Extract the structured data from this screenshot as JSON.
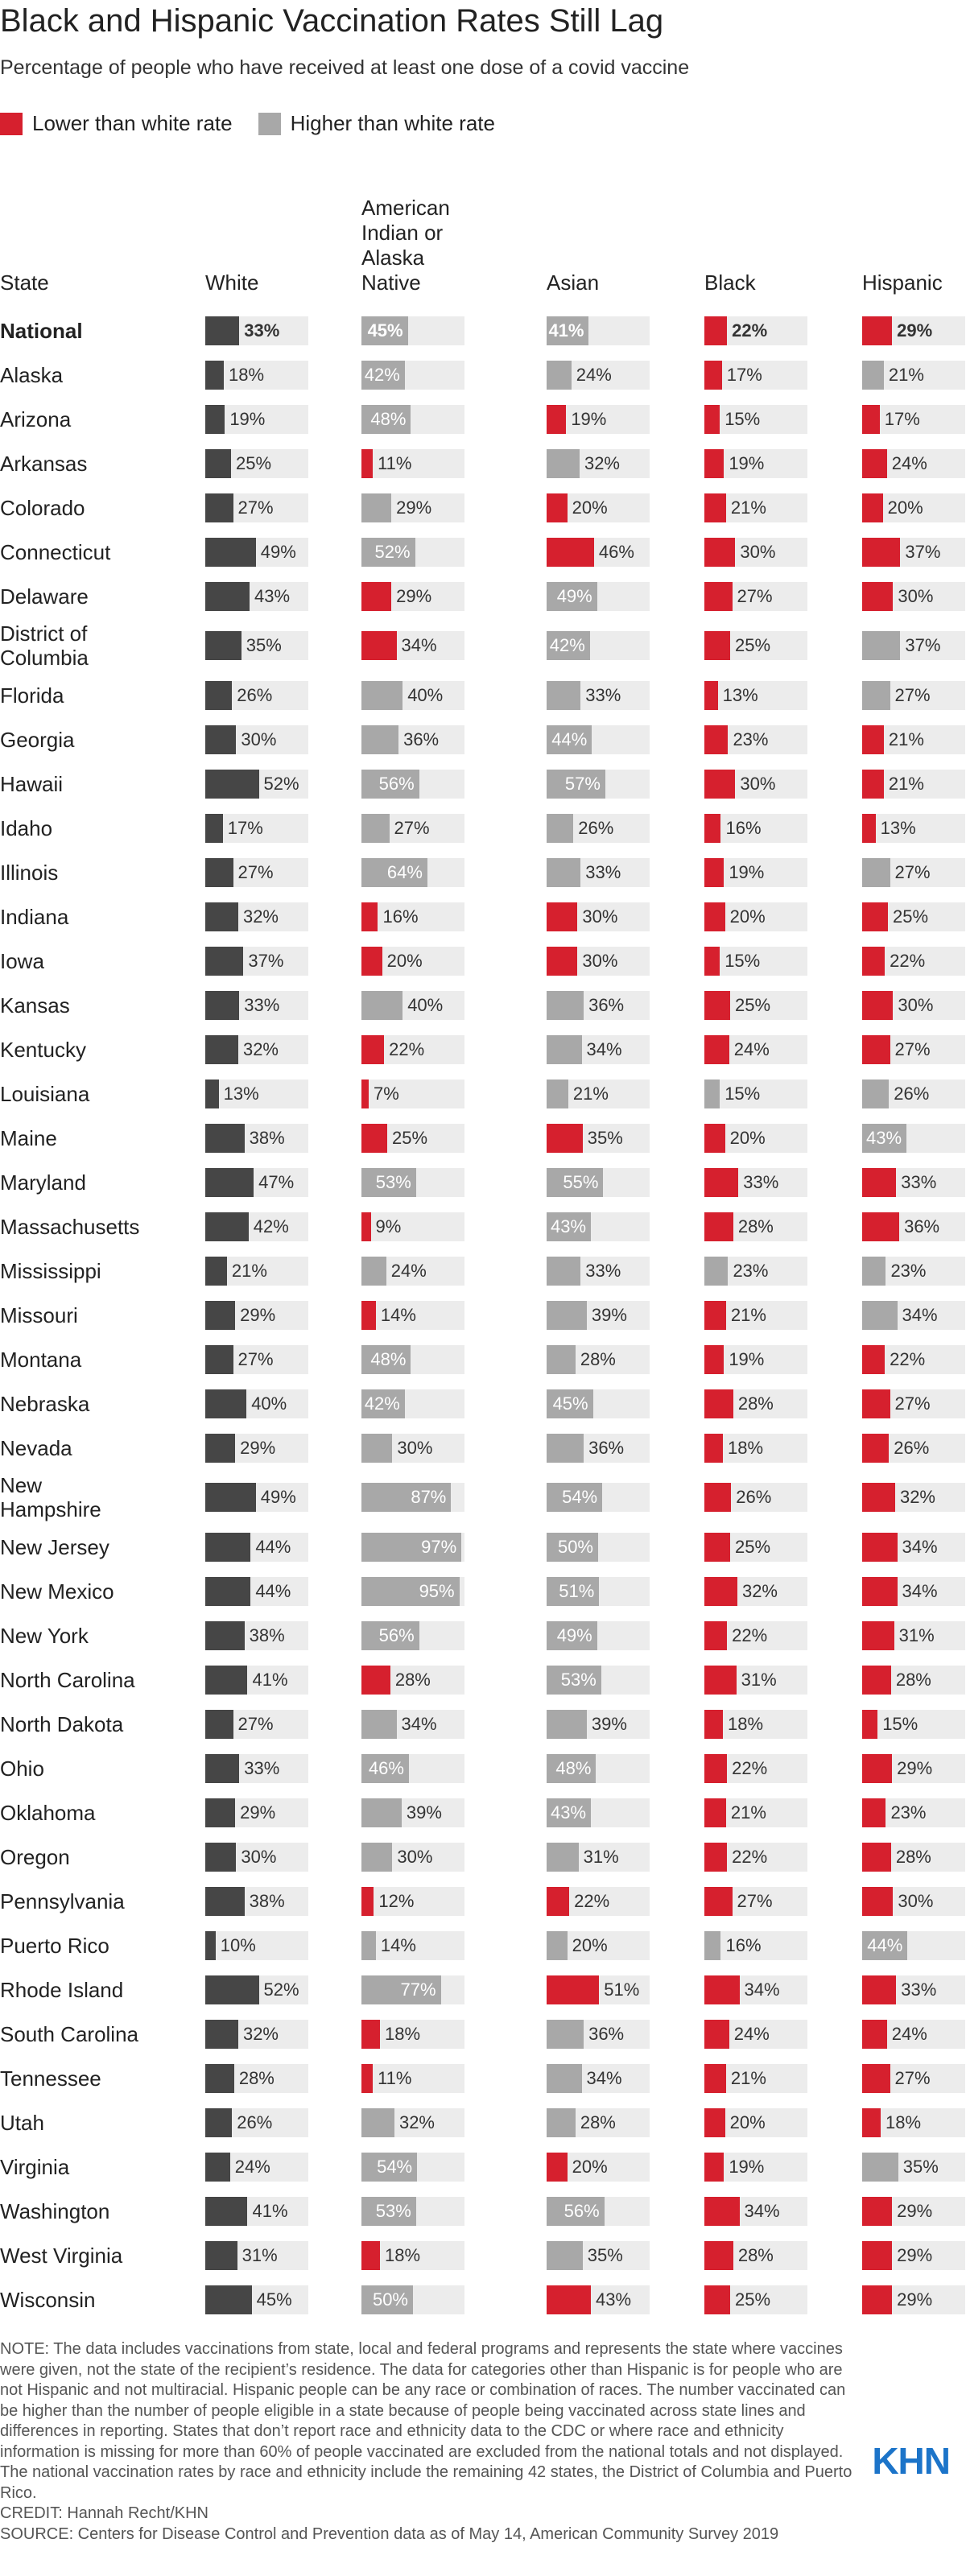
{
  "chart_data": {
    "type": "bar",
    "title": "Black and Hispanic Vaccination Rates Still Lag",
    "subtitle": "Percentage of people who have received at least one dose of a covid vaccine",
    "legend": [
      {
        "label": "Lower than white rate",
        "color": "#d6202e"
      },
      {
        "label": "Higher than white rate",
        "color": "#a8a8a8"
      }
    ],
    "category_label": "State",
    "xlim": [
      0,
      100
    ],
    "categories": [
      "National",
      "Alaska",
      "Arizona",
      "Arkansas",
      "Colorado",
      "Connecticut",
      "Delaware",
      "District of Columbia",
      "Florida",
      "Georgia",
      "Hawaii",
      "Idaho",
      "Illinois",
      "Indiana",
      "Iowa",
      "Kansas",
      "Kentucky",
      "Louisiana",
      "Maine",
      "Maryland",
      "Massachusetts",
      "Mississippi",
      "Missouri",
      "Montana",
      "Nebraska",
      "Nevada",
      "New Hampshire",
      "New Jersey",
      "New Mexico",
      "New York",
      "North Carolina",
      "North Dakota",
      "Ohio",
      "Oklahoma",
      "Oregon",
      "Pennsylvania",
      "Puerto Rico",
      "Rhode Island",
      "South Carolina",
      "Tennessee",
      "Utah",
      "Virginia",
      "Washington",
      "West Virginia",
      "Wisconsin"
    ],
    "series": [
      {
        "name": "White",
        "color": "#464646",
        "values": [
          33,
          18,
          19,
          25,
          27,
          49,
          43,
          35,
          26,
          30,
          52,
          17,
          27,
          32,
          37,
          33,
          32,
          13,
          38,
          47,
          42,
          21,
          29,
          27,
          40,
          29,
          49,
          44,
          44,
          38,
          41,
          27,
          33,
          29,
          30,
          38,
          10,
          52,
          32,
          28,
          26,
          24,
          41,
          31,
          45
        ],
        "value_labels": [
          "33%",
          "18%",
          "19%",
          "25%",
          "27%",
          "49%",
          "43%",
          "35%",
          "26%",
          "30%",
          "52%",
          "17%",
          "27%",
          "32%",
          "37%",
          "33%",
          "32%",
          "13%",
          "38%",
          "47%",
          "42%",
          "21%",
          "29%",
          "27%",
          "40%",
          "29%",
          "49%",
          "44%",
          "44%",
          "38%",
          "41%",
          "27%",
          "33%",
          "29%",
          "30%",
          "38%",
          "10%",
          "52%",
          "32%",
          "28%",
          "26%",
          "24%",
          "41%",
          "31%",
          "45%"
        ]
      },
      {
        "name": "American Indian or Alaska Native",
        "values": [
          45,
          42,
          48,
          11,
          29,
          52,
          29,
          34,
          40,
          36,
          56,
          27,
          64,
          16,
          20,
          40,
          22,
          7,
          25,
          53,
          9,
          24,
          14,
          48,
          42,
          30,
          87,
          97,
          95,
          56,
          28,
          34,
          46,
          39,
          30,
          12,
          14,
          77,
          18,
          11,
          32,
          54,
          53,
          18,
          50
        ],
        "value_labels": [
          "45%",
          "42%",
          "48%",
          "11%",
          "29%",
          "52%",
          "29%",
          "34%",
          "40%",
          "36%",
          "56%",
          "27%",
          "64%",
          "16%",
          "20%",
          "40%",
          "22%",
          "7%",
          "25%",
          "53%",
          "9%",
          "24%",
          "14%",
          "48%",
          "42%",
          "30%",
          "87%",
          "97%",
          "95%",
          "56%",
          "28%",
          "34%",
          "46%",
          "39%",
          "30%",
          "12%",
          "14%",
          "77%",
          "18%",
          "11%",
          "32%",
          "54%",
          "53%",
          "18%",
          "50%"
        ],
        "colors": [
          "#a8a8a8",
          "#a8a8a8",
          "#a8a8a8",
          "#d6202e",
          "#a8a8a8",
          "#a8a8a8",
          "#d6202e",
          "#d6202e",
          "#a8a8a8",
          "#a8a8a8",
          "#a8a8a8",
          "#a8a8a8",
          "#a8a8a8",
          "#d6202e",
          "#d6202e",
          "#a8a8a8",
          "#d6202e",
          "#d6202e",
          "#d6202e",
          "#a8a8a8",
          "#d6202e",
          "#a8a8a8",
          "#d6202e",
          "#a8a8a8",
          "#a8a8a8",
          "#a8a8a8",
          "#a8a8a8",
          "#a8a8a8",
          "#a8a8a8",
          "#a8a8a8",
          "#d6202e",
          "#a8a8a8",
          "#a8a8a8",
          "#a8a8a8",
          "#a8a8a8",
          "#d6202e",
          "#a8a8a8",
          "#a8a8a8",
          "#d6202e",
          "#d6202e",
          "#a8a8a8",
          "#a8a8a8",
          "#a8a8a8",
          "#d6202e",
          "#a8a8a8"
        ]
      },
      {
        "name": "Asian",
        "values": [
          41,
          24,
          19,
          32,
          20,
          46,
          49,
          42,
          33,
          44,
          57,
          26,
          33,
          30,
          30,
          36,
          34,
          21,
          35,
          55,
          43,
          33,
          39,
          28,
          45,
          36,
          54,
          50,
          51,
          49,
          53,
          39,
          48,
          43,
          31,
          22,
          20,
          51,
          36,
          34,
          28,
          20,
          56,
          35,
          43
        ],
        "value_labels": [
          "41%",
          "24%",
          "19%",
          "32%",
          "20%",
          "46%",
          "49%",
          "42%",
          "33%",
          "44%",
          "57%",
          "26%",
          "33%",
          "30%",
          "30%",
          "36%",
          "34%",
          "21%",
          "35%",
          "55%",
          "43%",
          "33%",
          "39%",
          "28%",
          "45%",
          "36%",
          "54%",
          "50%",
          "51%",
          "49%",
          "53%",
          "39%",
          "48%",
          "43%",
          "31%",
          "22%",
          "20%",
          "51%",
          "36%",
          "34%",
          "28%",
          "20%",
          "56%",
          "35%",
          "43%"
        ],
        "colors": [
          "#a8a8a8",
          "#a8a8a8",
          "#d6202e",
          "#a8a8a8",
          "#d6202e",
          "#d6202e",
          "#a8a8a8",
          "#a8a8a8",
          "#a8a8a8",
          "#a8a8a8",
          "#a8a8a8",
          "#a8a8a8",
          "#a8a8a8",
          "#d6202e",
          "#d6202e",
          "#a8a8a8",
          "#a8a8a8",
          "#a8a8a8",
          "#d6202e",
          "#a8a8a8",
          "#a8a8a8",
          "#a8a8a8",
          "#a8a8a8",
          "#a8a8a8",
          "#a8a8a8",
          "#a8a8a8",
          "#a8a8a8",
          "#a8a8a8",
          "#a8a8a8",
          "#a8a8a8",
          "#a8a8a8",
          "#a8a8a8",
          "#a8a8a8",
          "#a8a8a8",
          "#a8a8a8",
          "#d6202e",
          "#a8a8a8",
          "#d6202e",
          "#a8a8a8",
          "#a8a8a8",
          "#a8a8a8",
          "#d6202e",
          "#a8a8a8",
          "#a8a8a8",
          "#d6202e"
        ]
      },
      {
        "name": "Black",
        "values": [
          22,
          17,
          15,
          19,
          21,
          30,
          27,
          25,
          13,
          23,
          30,
          16,
          19,
          20,
          15,
          25,
          24,
          15,
          20,
          33,
          28,
          23,
          21,
          19,
          28,
          18,
          26,
          25,
          32,
          22,
          31,
          18,
          22,
          21,
          22,
          27,
          16,
          34,
          24,
          21,
          20,
          19,
          34,
          28,
          25
        ],
        "value_labels": [
          "22%",
          "17%",
          "15%",
          "19%",
          "21%",
          "30%",
          "27%",
          "25%",
          "13%",
          "23%",
          "30%",
          "16%",
          "19%",
          "20%",
          "15%",
          "25%",
          "24%",
          "15%",
          "20%",
          "33%",
          "28%",
          "23%",
          "21%",
          "19%",
          "28%",
          "18%",
          "26%",
          "25%",
          "32%",
          "22%",
          "31%",
          "18%",
          "22%",
          "21%",
          "22%",
          "27%",
          "16%",
          "34%",
          "24%",
          "21%",
          "20%",
          "19%",
          "34%",
          "28%",
          "25%"
        ],
        "colors": [
          "#d6202e",
          "#d6202e",
          "#d6202e",
          "#d6202e",
          "#d6202e",
          "#d6202e",
          "#d6202e",
          "#d6202e",
          "#d6202e",
          "#d6202e",
          "#d6202e",
          "#d6202e",
          "#d6202e",
          "#d6202e",
          "#d6202e",
          "#d6202e",
          "#d6202e",
          "#a8a8a8",
          "#d6202e",
          "#d6202e",
          "#d6202e",
          "#a8a8a8",
          "#d6202e",
          "#d6202e",
          "#d6202e",
          "#d6202e",
          "#d6202e",
          "#d6202e",
          "#d6202e",
          "#d6202e",
          "#d6202e",
          "#d6202e",
          "#d6202e",
          "#d6202e",
          "#d6202e",
          "#d6202e",
          "#a8a8a8",
          "#d6202e",
          "#d6202e",
          "#d6202e",
          "#d6202e",
          "#d6202e",
          "#d6202e",
          "#d6202e",
          "#d6202e"
        ]
      },
      {
        "name": "Hispanic",
        "values": [
          29,
          21,
          17,
          24,
          20,
          37,
          30,
          37,
          27,
          21,
          21,
          13,
          27,
          25,
          22,
          30,
          27,
          26,
          43,
          33,
          36,
          23,
          34,
          22,
          27,
          26,
          32,
          34,
          34,
          31,
          28,
          15,
          29,
          23,
          28,
          30,
          44,
          33,
          24,
          27,
          18,
          35,
          29,
          29,
          29
        ],
        "value_labels": [
          "29%",
          "21%",
          "17%",
          "24%",
          "20%",
          "37%",
          "30%",
          "37%",
          "27%",
          "21%",
          "21%",
          "13%",
          "27%",
          "25%",
          "22%",
          "30%",
          "27%",
          "26%",
          "43%",
          "33%",
          "36%",
          "23%",
          "34%",
          "22%",
          "27%",
          "26%",
          "32%",
          "34%",
          "34%",
          "31%",
          "28%",
          "15%",
          "29%",
          "23%",
          "28%",
          "30%",
          "44%",
          "33%",
          "24%",
          "27%",
          "18%",
          "35%",
          "29%",
          "29%",
          "29%"
        ],
        "colors": [
          "#d6202e",
          "#a8a8a8",
          "#d6202e",
          "#d6202e",
          "#d6202e",
          "#d6202e",
          "#d6202e",
          "#a8a8a8",
          "#a8a8a8",
          "#d6202e",
          "#d6202e",
          "#d6202e",
          "#a8a8a8",
          "#d6202e",
          "#d6202e",
          "#d6202e",
          "#d6202e",
          "#a8a8a8",
          "#a8a8a8",
          "#d6202e",
          "#d6202e",
          "#a8a8a8",
          "#a8a8a8",
          "#d6202e",
          "#d6202e",
          "#d6202e",
          "#d6202e",
          "#d6202e",
          "#d6202e",
          "#d6202e",
          "#d6202e",
          "#d6202e",
          "#d6202e",
          "#d6202e",
          "#d6202e",
          "#d6202e",
          "#a8a8a8",
          "#d6202e",
          "#d6202e",
          "#d6202e",
          "#d6202e",
          "#a8a8a8",
          "#d6202e",
          "#d6202e",
          "#d6202e"
        ]
      }
    ],
    "note": "NOTE: The data includes vaccinations from state, local and federal programs and represents the state where vaccines were given, not the state of the recipient’s residence. The data for categories other than Hispanic is for people who are not Hispanic and not multiracial. Hispanic people can be any race or combination of races. The number vaccinated can be higher than the number of people eligible in a state because of people being vaccinated across state lines and differences in reporting. States that don’t report race and ethnicity data to the CDC or where race and ethnicity information is missing for more than 60% of people vaccinated are excluded from the national totals and not displayed. The national vaccination rates by race and ethnicity include the remaining 42 states, the District of Columbia and Puerto Rico.",
    "credit": "CREDIT: Hannah Recht/KHN",
    "source": "SOURCE: Centers for Disease Control and Prevention data as of May 14, American Community Survey 2019",
    "logo": "KHN"
  }
}
